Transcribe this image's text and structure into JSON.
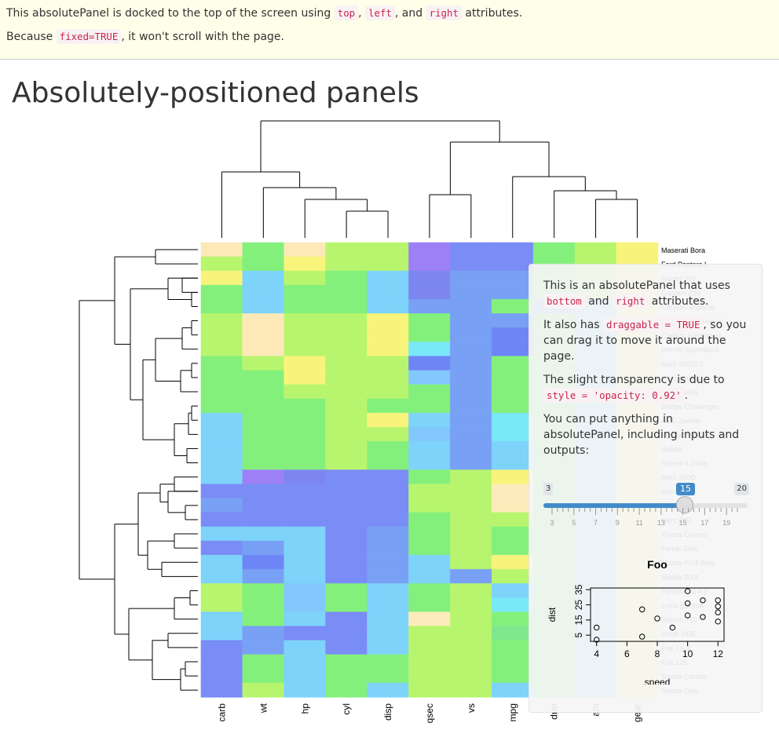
{
  "top_panel": {
    "line1": [
      "This absolutePanel is docked to the top of the screen using ",
      "top",
      ", ",
      "left",
      ", and ",
      "right",
      " attributes."
    ],
    "line2": [
      "Because ",
      "fixed=TRUE",
      ", it won't scroll with the page."
    ]
  },
  "page_title": "Absolutely-positioned panels",
  "heatmap": {
    "columns": [
      "carb",
      "wt",
      "hp",
      "cyl",
      "disp",
      "qsec",
      "vs",
      "mpg",
      "drat",
      "am",
      "gear"
    ],
    "rows": [
      "Maserati Bora",
      "Ford Pantera L",
      "Duster 360",
      "Camaro Z28",
      "Chrysler Imperial",
      "Lincoln Continental",
      "Cadillac Fleetwood",
      "Hornet Sportabout",
      "Merc 450SLC",
      "Merc 450SE",
      "Merc 450SL",
      "Dodge Challenger",
      "AMC Javelin",
      "Pontiac Firebird",
      "Valiant",
      "Hornet 4 Drive",
      "Merc 240D",
      "Merc 230",
      "Merc 280C",
      "Merc 280",
      "Toyota Corona",
      "Ferrari Dino",
      "Mazda RX4 Wag",
      "Mazda RX4",
      "Porsche 914-2",
      "Lotus Europa",
      "Datsun 710",
      "Volvo 142E",
      "Fiat X1-9",
      "Fiat 128",
      "Toyota Corolla",
      "Honda Civic"
    ],
    "colors": [
      "#7a8cf5",
      "#78a0f5",
      "#7dd3fa",
      "#84f07c",
      "#b8f56e",
      "#f8f47b",
      "#fde9b8",
      "#9d80f5",
      "#7d86f0",
      "#6e86f5",
      "#82c8fc",
      "#79e8f9",
      "#fdecbb",
      "#7fe88e"
    ]
  },
  "float_panel": {
    "p1": [
      "This is an absolutePanel that uses ",
      "bottom",
      " and ",
      "right",
      " attributes."
    ],
    "p2": [
      "It also has ",
      "draggable = TRUE",
      ", so you can drag it to move it around the page."
    ],
    "p3": [
      "The slight transparency is due to ",
      "style = 'opacity: 0.92'",
      "."
    ],
    "p4": "You can put anything in absolutePanel, including inputs and outputs:",
    "slider": {
      "min": 3,
      "max": 20,
      "value": 15,
      "tick_labels": [
        "3",
        "5",
        "7",
        "9",
        "11",
        "13",
        "15",
        "17",
        "19"
      ]
    }
  },
  "chart_data": {
    "type": "scatter",
    "title": "Foo",
    "xlabel": "speed",
    "ylabel": "dist",
    "xlim": [
      3.6,
      12.4
    ],
    "ylim": [
      0.9,
      36.1
    ],
    "x_ticks": [
      4,
      6,
      8,
      10,
      12
    ],
    "y_ticks": [
      5,
      15,
      25,
      35
    ],
    "x": [
      4,
      4,
      7,
      7,
      8,
      9,
      10,
      10,
      10,
      11,
      11,
      12,
      12,
      12,
      12
    ],
    "y": [
      2,
      10,
      4,
      22,
      16,
      10,
      18,
      26,
      34,
      17,
      28,
      14,
      20,
      24,
      28
    ]
  }
}
